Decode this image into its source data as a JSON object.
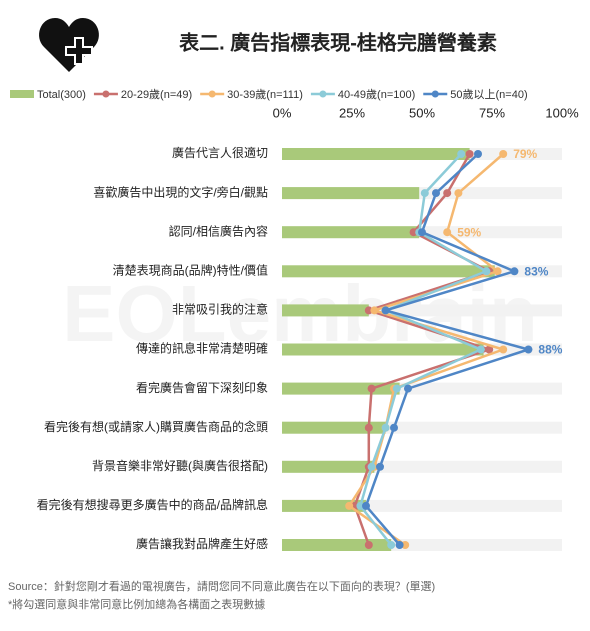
{
  "chart_data": {
    "type": "bar-line",
    "title": "表二. 廣告指標表現-桂格完膳營養素",
    "watermark": "EOLembrain",
    "categories": [
      "廣告代言人很適切",
      "喜歡廣告中出現的文字/旁白/觀點",
      "認同/相信廣告內容",
      "清楚表現商品(品牌)特性/價值",
      "非常吸引我的注意",
      "傳達的訊息非常清楚明確",
      "看完廣告會留下深刻印象",
      "看完後有想(或請家人)購買廣告商品的念頭",
      "背景音樂非常好聽(與廣告很搭配)",
      "看完後有想搜尋更多廣告中的商品/品牌訊息",
      "廣告讓我對品牌產生好感"
    ],
    "xlim": [
      0,
      100
    ],
    "xticks": [
      {
        "value": 0,
        "label": "0%"
      },
      {
        "value": 25,
        "label": "25%"
      },
      {
        "value": 50,
        "label": "50%"
      },
      {
        "value": 75,
        "label": "75%"
      },
      {
        "value": 100,
        "label": "100%"
      }
    ],
    "series": [
      {
        "name": "Total(300)",
        "color": "#a9c97a",
        "kind": "bar",
        "values": [
          67,
          49,
          49,
          76,
          31,
          72,
          42,
          37,
          33,
          30,
          39
        ]
      },
      {
        "name": "20-29歲(n=49)",
        "color": "#c9706e",
        "kind": "line",
        "values": [
          67,
          59,
          47,
          74,
          31,
          74,
          32,
          31,
          31,
          26,
          31
        ]
      },
      {
        "name": "30-39歲(n=111)",
        "color": "#f5b870",
        "kind": "line",
        "values": [
          79,
          63,
          59,
          77,
          33,
          79,
          40,
          37,
          33,
          24,
          44
        ],
        "value_labels": [
          "79%",
          null,
          "59%",
          null,
          null,
          null,
          null,
          null,
          null,
          null,
          null
        ]
      },
      {
        "name": "40-49歲(n=100)",
        "color": "#8ccbd8",
        "kind": "line",
        "values": [
          64,
          51,
          49,
          73,
          37,
          71,
          41,
          37,
          32,
          28,
          39
        ]
      },
      {
        "name": "50歲以上(n=40)",
        "color": "#4f86c6",
        "kind": "line",
        "values": [
          70,
          55,
          50,
          83,
          37,
          88,
          45,
          40,
          35,
          30,
          42
        ],
        "value_labels": [
          null,
          null,
          null,
          "83%",
          null,
          "88%",
          null,
          null,
          null,
          null,
          null
        ]
      }
    ],
    "notes": [
      "Source：針對您剛才看過的電視廣告，請問您同不同意此廣告在以下面向的表現？(單選)",
      "*將勾選同意與非常同意比例加總為各構面之表現數據"
    ]
  }
}
